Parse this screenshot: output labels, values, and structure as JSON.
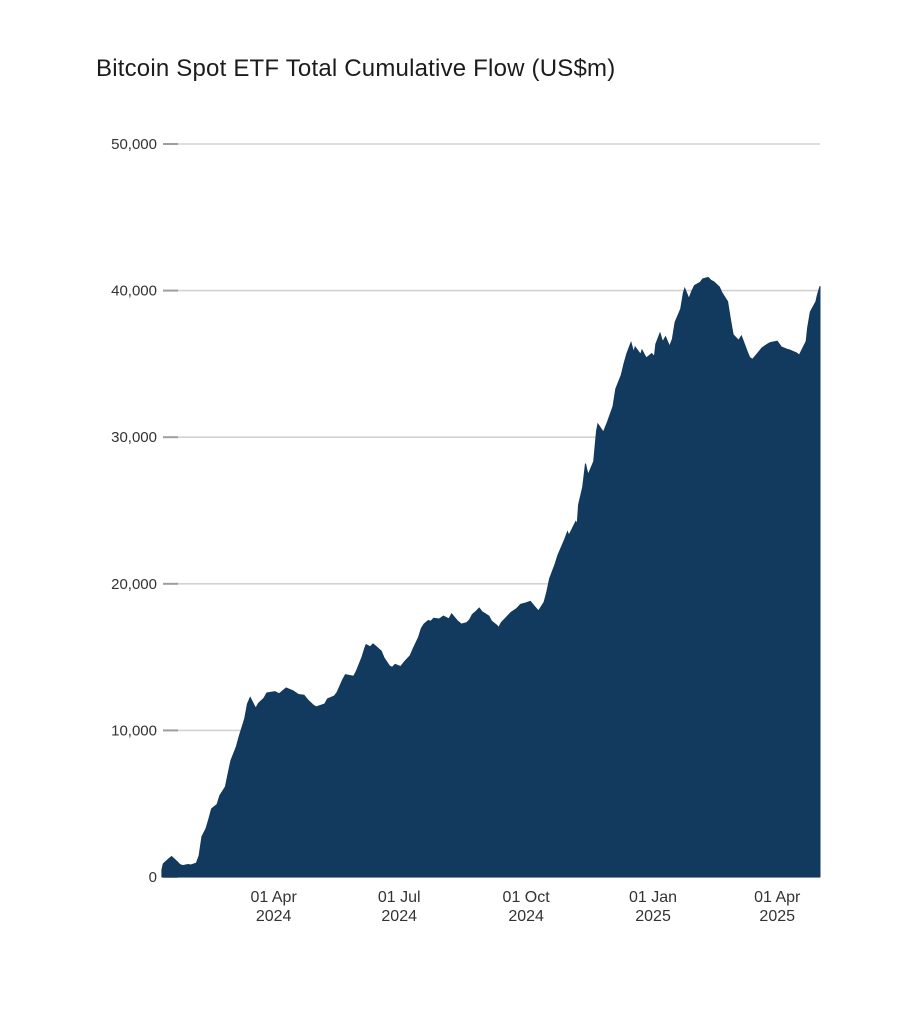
{
  "page": {
    "background_color": "#ffffff"
  },
  "chart_data": {
    "type": "area",
    "title": "Bitcoin Spot ETF Total Cumulative Flow (US$m)",
    "series_name": "Total Cumulative Flow",
    "unit": "US$m",
    "legend": "none",
    "grid": "horizontal-only",
    "area_color": "#12395E",
    "grid_color": "#d2d2d2",
    "tick_mark_color": "#9e9e9e",
    "axis_text_color": "#333333",
    "title_color": "#1c1c1c",
    "ylim": [
      0,
      50000
    ],
    "y_ticks": [
      {
        "value": 0,
        "label": "0"
      },
      {
        "value": 10000,
        "label": "10,000"
      },
      {
        "value": 20000,
        "label": "20,000"
      },
      {
        "value": 30000,
        "label": "30,000"
      },
      {
        "value": 40000,
        "label": "40,000"
      },
      {
        "value": 50000,
        "label": "50,000"
      }
    ],
    "x_domain": {
      "start": "2024-01-06",
      "end": "2025-05-02"
    },
    "x_ticks": [
      {
        "date": "2024-04-01",
        "line1": "01 Apr",
        "line2": "2024"
      },
      {
        "date": "2024-07-01",
        "line1": "01 Jul",
        "line2": "2024"
      },
      {
        "date": "2024-10-01",
        "line1": "01 Oct",
        "line2": "2024"
      },
      {
        "date": "2025-01-01",
        "line1": "01 Jan",
        "line2": "2025"
      },
      {
        "date": "2025-04-01",
        "line1": "01 Apr",
        "line2": "2025"
      }
    ],
    "points": [
      [
        "2024-01-11",
        500
      ],
      [
        "2024-01-12",
        900
      ],
      [
        "2024-01-16",
        1250
      ],
      [
        "2024-01-18",
        1400
      ],
      [
        "2024-01-22",
        1050
      ],
      [
        "2024-01-24",
        850
      ],
      [
        "2024-01-26",
        780
      ],
      [
        "2024-01-30",
        850
      ],
      [
        "2024-02-01",
        820
      ],
      [
        "2024-02-05",
        950
      ],
      [
        "2024-02-07",
        1450
      ],
      [
        "2024-02-09",
        2750
      ],
      [
        "2024-02-12",
        3300
      ],
      [
        "2024-02-14",
        3950
      ],
      [
        "2024-02-16",
        4650
      ],
      [
        "2024-02-20",
        4950
      ],
      [
        "2024-02-22",
        5550
      ],
      [
        "2024-02-26",
        6150
      ],
      [
        "2024-02-28",
        7050
      ],
      [
        "2024-03-01",
        7950
      ],
      [
        "2024-03-05",
        8900
      ],
      [
        "2024-03-07",
        9600
      ],
      [
        "2024-03-11",
        10800
      ],
      [
        "2024-03-13",
        11800
      ],
      [
        "2024-03-15",
        12250
      ],
      [
        "2024-03-19",
        11500
      ],
      [
        "2024-03-21",
        11850
      ],
      [
        "2024-03-25",
        12200
      ],
      [
        "2024-03-27",
        12550
      ],
      [
        "2024-04-02",
        12650
      ],
      [
        "2024-04-05",
        12500
      ],
      [
        "2024-04-10",
        12900
      ],
      [
        "2024-04-15",
        12700
      ],
      [
        "2024-04-19",
        12450
      ],
      [
        "2024-04-23",
        12400
      ],
      [
        "2024-04-26",
        12050
      ],
      [
        "2024-04-30",
        11700
      ],
      [
        "2024-05-02",
        11600
      ],
      [
        "2024-05-08",
        11800
      ],
      [
        "2024-05-10",
        12150
      ],
      [
        "2024-05-15",
        12350
      ],
      [
        "2024-05-17",
        12600
      ],
      [
        "2024-05-21",
        13450
      ],
      [
        "2024-05-23",
        13800
      ],
      [
        "2024-05-29",
        13700
      ],
      [
        "2024-05-31",
        14050
      ],
      [
        "2024-06-04",
        15000
      ],
      [
        "2024-06-06",
        15600
      ],
      [
        "2024-06-07",
        15850
      ],
      [
        "2024-06-10",
        15700
      ],
      [
        "2024-06-12",
        15900
      ],
      [
        "2024-06-14",
        15750
      ],
      [
        "2024-06-18",
        15400
      ],
      [
        "2024-06-20",
        14950
      ],
      [
        "2024-06-24",
        14400
      ],
      [
        "2024-06-26",
        14300
      ],
      [
        "2024-06-28",
        14500
      ],
      [
        "2024-07-02",
        14350
      ],
      [
        "2024-07-05",
        14700
      ],
      [
        "2024-07-09",
        15100
      ],
      [
        "2024-07-11",
        15550
      ],
      [
        "2024-07-15",
        16350
      ],
      [
        "2024-07-17",
        16950
      ],
      [
        "2024-07-19",
        17250
      ],
      [
        "2024-07-22",
        17500
      ],
      [
        "2024-07-24",
        17450
      ],
      [
        "2024-07-26",
        17650
      ],
      [
        "2024-07-30",
        17600
      ],
      [
        "2024-08-02",
        17800
      ],
      [
        "2024-08-06",
        17600
      ],
      [
        "2024-08-08",
        17950
      ],
      [
        "2024-08-12",
        17500
      ],
      [
        "2024-08-15",
        17250
      ],
      [
        "2024-08-19",
        17350
      ],
      [
        "2024-08-21",
        17550
      ],
      [
        "2024-08-23",
        17900
      ],
      [
        "2024-08-26",
        18150
      ],
      [
        "2024-08-28",
        18350
      ],
      [
        "2024-08-30",
        18100
      ],
      [
        "2024-09-04",
        17800
      ],
      [
        "2024-09-06",
        17450
      ],
      [
        "2024-09-10",
        17150
      ],
      [
        "2024-09-11",
        17000
      ],
      [
        "2024-09-13",
        17350
      ],
      [
        "2024-09-17",
        17750
      ],
      [
        "2024-09-20",
        18050
      ],
      [
        "2024-09-24",
        18300
      ],
      [
        "2024-09-27",
        18600
      ],
      [
        "2024-10-01",
        18700
      ],
      [
        "2024-10-04",
        18800
      ],
      [
        "2024-10-08",
        18350
      ],
      [
        "2024-10-10",
        18150
      ],
      [
        "2024-10-14",
        18750
      ],
      [
        "2024-10-16",
        19450
      ],
      [
        "2024-10-18",
        20350
      ],
      [
        "2024-10-22",
        21350
      ],
      [
        "2024-10-24",
        21950
      ],
      [
        "2024-10-29",
        23050
      ],
      [
        "2024-10-31",
        23550
      ],
      [
        "2024-11-01",
        23300
      ],
      [
        "2024-11-06",
        24250
      ],
      [
        "2024-11-07",
        24050
      ],
      [
        "2024-11-08",
        25400
      ],
      [
        "2024-11-11",
        26600
      ],
      [
        "2024-11-13",
        28200
      ],
      [
        "2024-11-14",
        27800
      ],
      [
        "2024-11-15",
        27450
      ],
      [
        "2024-11-19",
        28350
      ],
      [
        "2024-11-21",
        30400
      ],
      [
        "2024-11-22",
        30900
      ],
      [
        "2024-11-26",
        30350
      ],
      [
        "2024-11-29",
        31050
      ],
      [
        "2024-12-03",
        32100
      ],
      [
        "2024-12-05",
        33300
      ],
      [
        "2024-12-09",
        34250
      ],
      [
        "2024-12-11",
        35050
      ],
      [
        "2024-12-13",
        35700
      ],
      [
        "2024-12-16",
        36450
      ],
      [
        "2024-12-18",
        35800
      ],
      [
        "2024-12-19",
        36150
      ],
      [
        "2024-12-23",
        35650
      ],
      [
        "2024-12-24",
        35950
      ],
      [
        "2024-12-27",
        35400
      ],
      [
        "2024-12-31",
        35700
      ],
      [
        "2025-01-02",
        35500
      ],
      [
        "2025-01-03",
        36350
      ],
      [
        "2025-01-06",
        37100
      ],
      [
        "2025-01-08",
        36500
      ],
      [
        "2025-01-10",
        36850
      ],
      [
        "2025-01-13",
        36200
      ],
      [
        "2025-01-15",
        36700
      ],
      [
        "2025-01-17",
        37850
      ],
      [
        "2025-01-21",
        38750
      ],
      [
        "2025-01-23",
        39850
      ],
      [
        "2025-01-24",
        40150
      ],
      [
        "2025-01-27",
        39450
      ],
      [
        "2025-01-29",
        39950
      ],
      [
        "2025-01-31",
        40350
      ],
      [
        "2025-02-04",
        40550
      ],
      [
        "2025-02-06",
        40800
      ],
      [
        "2025-02-10",
        40900
      ],
      [
        "2025-02-12",
        40700
      ],
      [
        "2025-02-14",
        40600
      ],
      [
        "2025-02-18",
        40250
      ],
      [
        "2025-02-20",
        39850
      ],
      [
        "2025-02-24",
        39250
      ],
      [
        "2025-02-26",
        38100
      ],
      [
        "2025-02-28",
        37000
      ],
      [
        "2025-03-04",
        36600
      ],
      [
        "2025-03-06",
        36900
      ],
      [
        "2025-03-10",
        35900
      ],
      [
        "2025-03-12",
        35450
      ],
      [
        "2025-03-14",
        35300
      ],
      [
        "2025-03-18",
        35750
      ],
      [
        "2025-03-21",
        36100
      ],
      [
        "2025-03-25",
        36350
      ],
      [
        "2025-03-27",
        36450
      ],
      [
        "2025-04-01",
        36550
      ],
      [
        "2025-04-04",
        36150
      ],
      [
        "2025-04-08",
        36000
      ],
      [
        "2025-04-10",
        35950
      ],
      [
        "2025-04-15",
        35750
      ],
      [
        "2025-04-17",
        35600
      ],
      [
        "2025-04-22",
        36550
      ],
      [
        "2025-04-23",
        37450
      ],
      [
        "2025-04-25",
        38550
      ],
      [
        "2025-04-29",
        39250
      ],
      [
        "2025-04-30",
        39650
      ],
      [
        "2025-05-02",
        40300
      ]
    ]
  }
}
